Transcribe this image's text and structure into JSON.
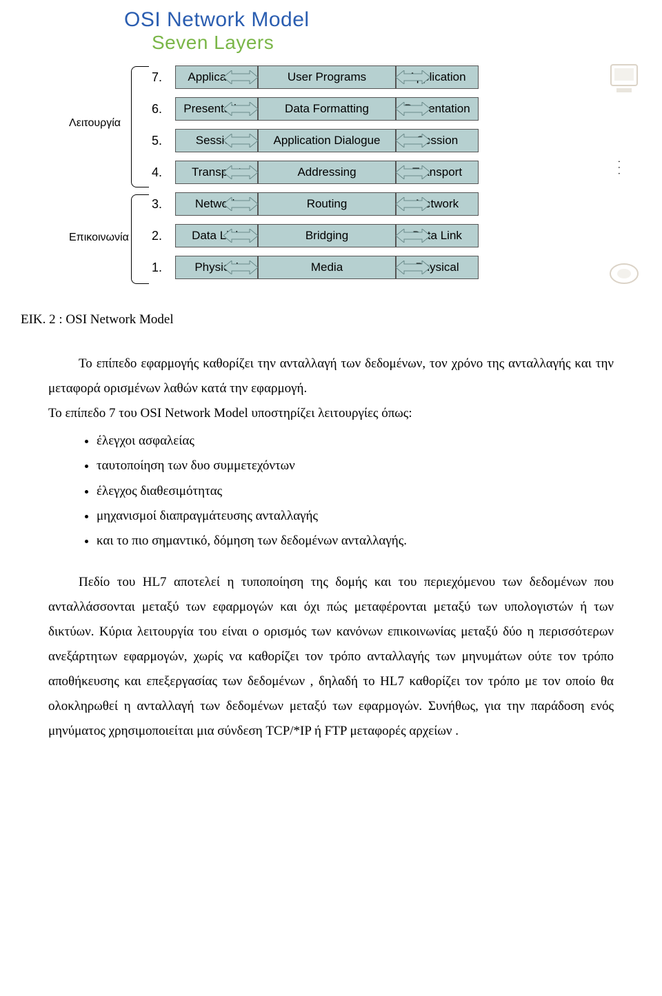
{
  "title": {
    "main": "OSI Network Model",
    "sub": "Seven Layers",
    "main_color": "#2a5db0",
    "sub_color": "#7ab648",
    "main_fontsize": 30,
    "sub_fontsize": 28
  },
  "colors": {
    "box_fill": "#b6d0d0",
    "arrow_fill": "#b6d0d0",
    "box_border": "#555555",
    "background": "#ffffff",
    "text": "#000000"
  },
  "brackets": {
    "upper_label": "Λειτουργία",
    "lower_label": "Επικοινωνία"
  },
  "layers": [
    {
      "n": "7.",
      "left": "Application",
      "mid": "User Programs",
      "right": "Application"
    },
    {
      "n": "6.",
      "left": "Presentation",
      "mid": "Data Formatting",
      "right": "Presentation"
    },
    {
      "n": "5.",
      "left": "Session",
      "mid": "Application Dialogue",
      "right": "Session"
    },
    {
      "n": "4.",
      "left": "Transport",
      "mid": "Addressing",
      "right": "Transport"
    },
    {
      "n": "3.",
      "left": "Network",
      "mid": "Routing",
      "right": "Network"
    },
    {
      "n": "2.",
      "left": "Data Link",
      "mid": "Bridging",
      "right": "Data Link"
    },
    {
      "n": "1.",
      "left": "Physical",
      "mid": "Media",
      "right": "Physical"
    }
  ],
  "text": {
    "caption": "ΕΙΚ. 2 : OSI Network Model",
    "p1": "Το επίπεδο εφαρμογής καθορίζει την ανταλλαγή των δεδομένων, τον χρόνο της ανταλλαγής και την μεταφορά ορισμένων λαθών κατά την εφαρμογή.",
    "p2": "Το επίπεδο 7 του OSI Network Model υποστηρίζει λειτουργίες όπως:",
    "bullets": [
      "έλεγχοι ασφαλείας",
      "ταυτοποίηση των δυο συμμετεχόντων",
      "έλεγχος διαθεσιμότητας",
      "μηχανισμοί διαπραγμάτευσης ανταλλαγής",
      "και το πιο σημαντικό, δόμηση των δεδομένων ανταλλαγής."
    ],
    "p3": "Πεδίο του HL7 αποτελεί η τυποποίηση της δομής και του περιεχόμενου των δεδομένων που ανταλλάσσονται μεταξύ των εφαρμογών και όχι πώς μεταφέρονται μεταξύ των υπολογιστών ή των δικτύων. Κύρια λειτουργία του είναι ο ορισμός των κανόνων επικοινωνίας μεταξύ δύο η περισσότερων ανεξάρτητων εφαρμογών, χωρίς να καθορίζει τον τρόπο ανταλλαγής των μηνυμάτων ούτε τον τρόπο αποθήκευσης και επεξεργασίας των δεδομένων , δηλαδή το HL7 καθορίζει τον τρόπο με τον οποίο θα ολοκληρωθεί η ανταλλαγή των δεδομένων μεταξύ των εφαρμογών. Συνήθως, για την παράδοση ενός μηνύματος χρησιμοποιείται μια σύνδεση TCP/*IP ή FTP μεταφορές αρχείων ."
  }
}
